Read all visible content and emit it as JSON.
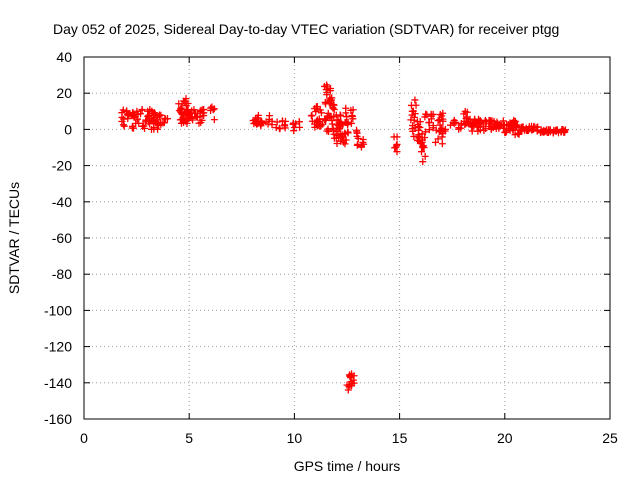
{
  "chart_data": {
    "type": "scatter",
    "title": "Day 052 of 2025, Sidereal Day-to-day VTEC variation (SDTVAR) for receiver ptgg",
    "xlabel": "GPS time / hours",
    "ylabel": "SDTVAR / TECUs",
    "xlim": [
      0,
      25
    ],
    "ylim": [
      -160,
      40
    ],
    "x_ticks": [
      0,
      5,
      10,
      15,
      20,
      25
    ],
    "y_ticks": [
      40,
      20,
      0,
      -20,
      -40,
      -60,
      -80,
      -100,
      -120,
      -140,
      -160
    ],
    "grid": true,
    "marker": "plus",
    "series": [
      {
        "name": "SDTVAR",
        "color": "#ff0000",
        "segments": [
          {
            "x0": 1.8,
            "x1": 3.6,
            "ymin": 0,
            "ymax": 11,
            "n": 70
          },
          {
            "x0": 3.6,
            "x1": 4.0,
            "ymin": 1,
            "ymax": 8,
            "n": 8
          },
          {
            "x0": 4.5,
            "x1": 5.0,
            "ymin": 5,
            "ymax": 17,
            "n": 20
          },
          {
            "x0": 4.6,
            "x1": 5.7,
            "ymin": 3,
            "ymax": 11,
            "n": 40
          },
          {
            "x0": 6.0,
            "x1": 6.2,
            "ymin": 4,
            "ymax": 15,
            "n": 6
          },
          {
            "x0": 8.0,
            "x1": 9.0,
            "ymin": 2,
            "ymax": 8,
            "n": 24
          },
          {
            "x0": 9.0,
            "x1": 9.6,
            "ymin": 0,
            "ymax": 5,
            "n": 10
          },
          {
            "x0": 9.9,
            "x1": 10.3,
            "ymin": -2,
            "ymax": 5,
            "n": 8
          },
          {
            "x0": 10.8,
            "x1": 11.4,
            "ymin": 0,
            "ymax": 13,
            "n": 24
          },
          {
            "x0": 11.4,
            "x1": 11.9,
            "ymin": 4,
            "ymax": 26,
            "n": 30
          },
          {
            "x0": 11.5,
            "x1": 12.2,
            "ymin": -5,
            "ymax": 8,
            "n": 22
          },
          {
            "x0": 12.0,
            "x1": 12.6,
            "ymin": -8,
            "ymax": 5,
            "n": 28
          },
          {
            "x0": 12.4,
            "x1": 12.8,
            "ymin": 2,
            "ymax": 12,
            "n": 12
          },
          {
            "x0": 12.5,
            "x1": 12.8,
            "ymin": -144,
            "ymax": -140,
            "n": 6
          },
          {
            "x0": 12.6,
            "x1": 12.9,
            "ymin": -141,
            "ymax": -135,
            "n": 10
          },
          {
            "x0": 12.9,
            "x1": 13.3,
            "ymin": -10,
            "ymax": 1,
            "n": 12
          },
          {
            "x0": 14.7,
            "x1": 14.9,
            "ymin": -13,
            "ymax": -4,
            "n": 8
          },
          {
            "x0": 15.5,
            "x1": 15.8,
            "ymin": 5,
            "ymax": 18,
            "n": 10
          },
          {
            "x0": 15.6,
            "x1": 16.0,
            "ymin": -8,
            "ymax": 5,
            "n": 18
          },
          {
            "x0": 15.9,
            "x1": 16.3,
            "ymin": -19,
            "ymax": -2,
            "n": 14
          },
          {
            "x0": 16.2,
            "x1": 17.1,
            "ymin": -3,
            "ymax": 10,
            "n": 26
          },
          {
            "x0": 16.7,
            "x1": 17.2,
            "ymin": -8,
            "ymax": 2,
            "n": 10
          },
          {
            "x0": 17.4,
            "x1": 18.0,
            "ymin": -2,
            "ymax": 5,
            "n": 10
          },
          {
            "x0": 17.9,
            "x1": 18.4,
            "ymin": 2,
            "ymax": 10,
            "n": 14
          },
          {
            "x0": 18.3,
            "x1": 19.2,
            "ymin": -1,
            "ymax": 6,
            "n": 30
          },
          {
            "x0": 19.2,
            "x1": 20.0,
            "ymin": 0,
            "ymax": 5,
            "n": 28
          },
          {
            "x0": 20.0,
            "x1": 20.7,
            "ymin": -3,
            "ymax": 5,
            "n": 34
          },
          {
            "x0": 20.7,
            "x1": 21.6,
            "ymin": -1,
            "ymax": 2,
            "n": 30
          },
          {
            "x0": 21.6,
            "x1": 22.9,
            "ymin": -2,
            "ymax": 0,
            "n": 40
          }
        ]
      }
    ]
  }
}
